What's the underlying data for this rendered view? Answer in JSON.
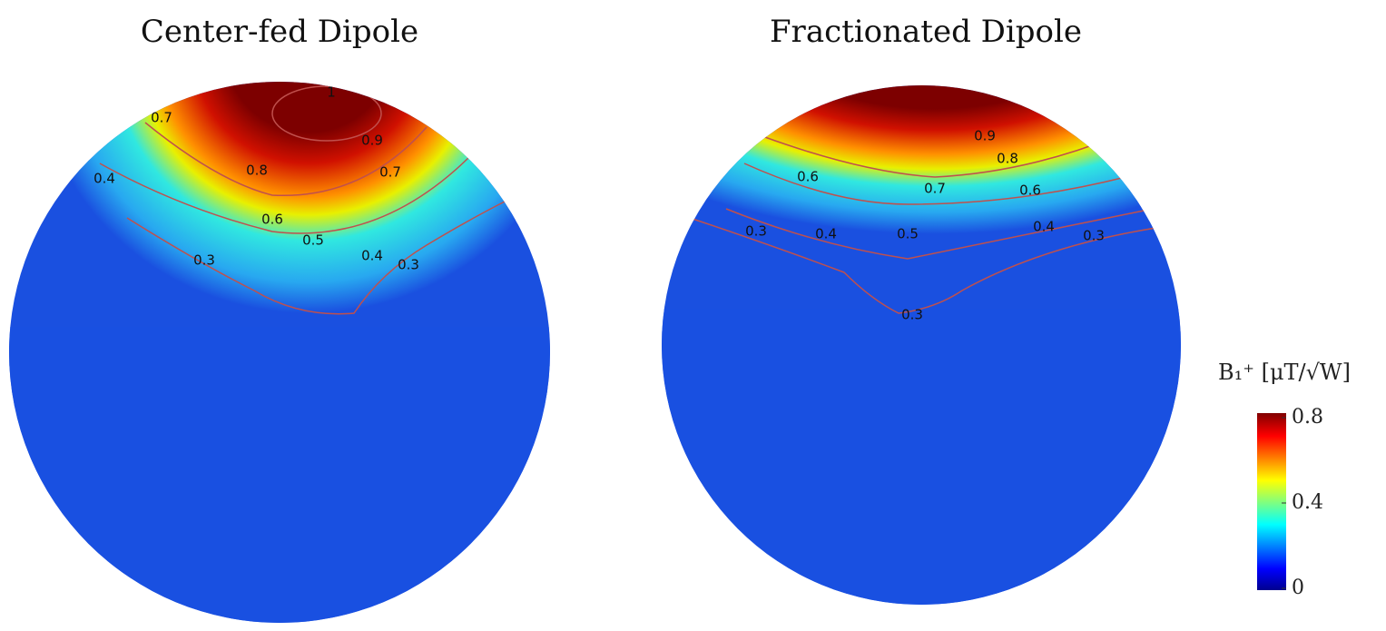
{
  "panels": [
    {
      "title": "Center-fed Dipole",
      "contour_labels": [
        0.7,
        1,
        0.9,
        0.8,
        0.7,
        0.4,
        0.6,
        0.5,
        0.4,
        0.3,
        0.3
      ]
    },
    {
      "title": "Fractionated Dipole",
      "contour_labels": [
        0.9,
        0.8,
        0.6,
        0.7,
        0.6,
        0.3,
        0.4,
        0.5,
        0.4,
        0.3,
        0.3
      ]
    }
  ],
  "colorbar": {
    "label": "B₁⁺ [μT/√W]",
    "lim": [
      0,
      0.8
    ],
    "ticks": [
      0.8,
      0.4,
      0
    ]
  }
}
